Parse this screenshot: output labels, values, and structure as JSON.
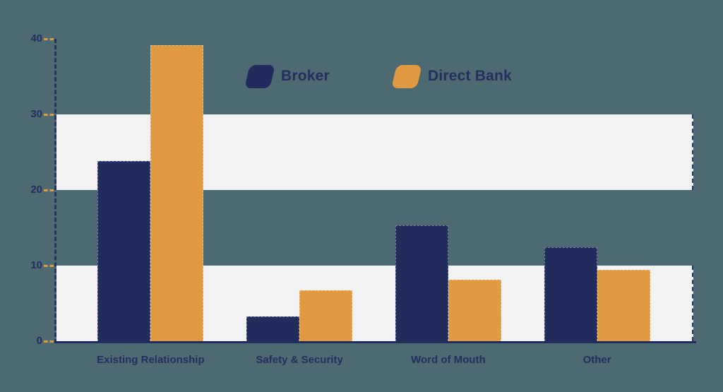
{
  "chart_data": {
    "type": "bar",
    "title": "",
    "categories": [
      "Existing Relationship",
      "Safety & Security",
      "Word of Mouth",
      "Other"
    ],
    "series": [
      {
        "name": "Broker",
        "color": "#222c5c",
        "values": [
          23.8,
          3.3,
          15.3,
          12.4
        ]
      },
      {
        "name": "Direct Bank",
        "color": "#e09a42",
        "values": [
          39.2,
          6.7,
          8.1,
          9.4
        ]
      }
    ],
    "xlabel": "",
    "ylabel": "",
    "ylim": [
      0,
      40
    ],
    "yticks": [
      0,
      10,
      20,
      30,
      40
    ],
    "grid": "horizontal-stripe-bands",
    "stripe_bands": [
      [
        0,
        10
      ],
      [
        20,
        30
      ]
    ],
    "legend_position": "top-center"
  },
  "colors": {
    "background": "#4d6972",
    "stripe_fill": "#f2f1f3",
    "stripe_edge": "#2b3660",
    "axis": "#222c5c",
    "tick_mark": "#e09a42",
    "text": "#242e5f",
    "series_broker": "#222c5c",
    "series_direct_bank": "#e09a42"
  },
  "legend": {
    "items": [
      {
        "label": "Broker",
        "swatch": "broker-swatch"
      },
      {
        "label": "Direct Bank",
        "swatch": "direct-bank-swatch"
      }
    ]
  }
}
